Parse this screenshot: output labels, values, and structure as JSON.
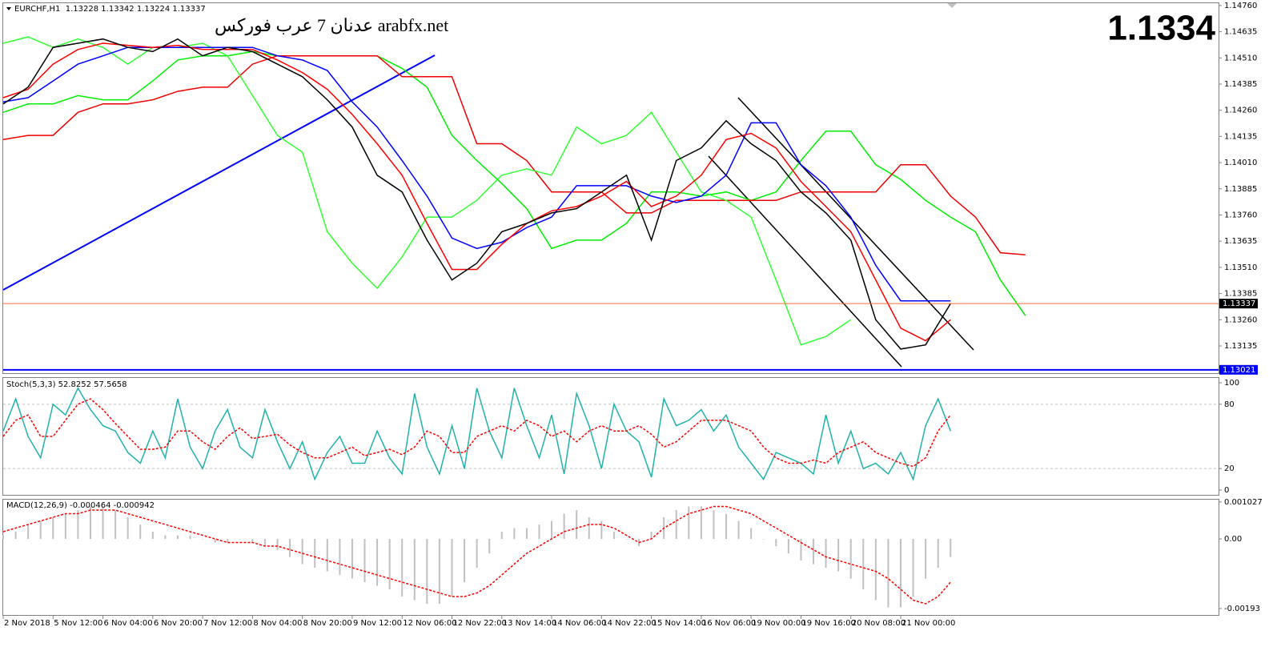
{
  "chart_data": [
    {
      "type": "line",
      "title": "EURCHF,H1  1.13228 1.13342 1.13224 1.13337",
      "watermark": "عدنان 7 عرب فوركس arabfx.net",
      "last_price_label": "1.1334",
      "x": [
        0,
        8,
        16,
        24,
        32,
        40,
        48,
        56,
        64,
        72,
        80,
        88,
        96,
        104,
        112,
        120,
        128,
        136,
        144,
        152,
        160,
        168,
        176,
        184,
        192,
        200,
        208,
        216,
        224,
        232,
        240,
        248,
        256,
        264,
        272,
        280,
        288,
        296,
        304,
        312,
        320,
        328
      ],
      "xlim": [
        0,
        390
      ],
      "ylim": [
        1.13005,
        1.14771
      ],
      "yticks": [
        {
          "value": 1.1476,
          "label": "1.14760"
        },
        1.14635,
        {
          "value": 1.1451,
          "label": "1.14510"
        },
        1.14385,
        {
          "value": 1.1426,
          "label": "1.14260"
        },
        1.14135,
        {
          "value": 1.1401,
          "label": "1.14010"
        },
        1.13885,
        {
          "value": 1.1376,
          "label": "1.13760"
        },
        1.13635,
        {
          "value": 1.1351,
          "label": "1.13510"
        },
        1.13385,
        {
          "value": 1.1326,
          "label": "1.13260"
        },
        1.13135
      ],
      "price_lines": [
        {
          "value": 1.13337,
          "label": "1.13337",
          "color": "#ff6a3a"
        },
        {
          "value": 1.13021,
          "label": "1.13021",
          "color": "#0000ff"
        }
      ],
      "series": [
        {
          "color": "#00ee00",
          "values": [
            1.1425,
            1.1429,
            1.1429,
            1.1433,
            1.1431,
            1.1431,
            1.144,
            1.145,
            1.1452,
            1.1452,
            1.1454,
            1.1452,
            1.1452,
            1.1452,
            1.1452,
            1.1452,
            1.1446,
            1.1437,
            1.1414,
            1.1402,
            1.1391,
            1.1379,
            1.136,
            1.1364,
            1.1364,
            1.1372,
            1.1387,
            1.1387,
            1.1385,
            1.1387,
            1.1383,
            1.1387,
            1.1402,
            1.1416,
            1.1416,
            1.14,
            1.1393,
            1.1383,
            1.1375,
            1.1368,
            1.1345,
            1.1328
          ]
        },
        {
          "color": "#ee0000",
          "values": [
            1.1412,
            1.1414,
            1.1414,
            1.1425,
            1.1429,
            1.1429,
            1.1431,
            1.1435,
            1.1437,
            1.1437,
            1.1448,
            1.1452,
            1.1452,
            1.1452,
            1.1452,
            1.1452,
            1.1442,
            1.1442,
            1.1442,
            1.141,
            1.141,
            1.1402,
            1.1387,
            1.1387,
            1.1387,
            1.1377,
            1.1377,
            1.1383,
            1.1383,
            1.1383,
            1.1383,
            1.1383,
            1.1387,
            1.1387,
            1.1387,
            1.1387,
            1.14,
            1.14,
            1.1385,
            1.1375,
            1.1358,
            1.1357
          ]
        },
        {
          "color": "#33ff33",
          "values": [
            1.1458,
            1.1461,
            1.1456,
            1.146,
            1.1456,
            1.1448,
            1.1456,
            1.1456,
            1.1458,
            1.1452,
            1.1433,
            1.1414,
            1.1406,
            1.1368,
            1.1353,
            1.1341,
            1.1356,
            1.1375,
            1.1375,
            1.1383,
            1.1395,
            1.1398,
            1.1395,
            1.1418,
            1.141,
            1.1414,
            1.1425,
            1.1406,
            1.1387,
            1.1383,
            1.1375,
            1.1345,
            1.1314,
            1.1318,
            1.1326,
            null,
            null,
            null,
            null,
            null,
            null,
            null
          ]
        },
        {
          "color": "#0000ff",
          "values": [
            1.143,
            1.1432,
            1.144,
            1.1448,
            1.1452,
            1.1456,
            1.1456,
            1.1456,
            1.1456,
            1.1456,
            1.1456,
            1.1452,
            1.145,
            1.1445,
            1.143,
            1.1418,
            1.1402,
            1.1385,
            1.1365,
            1.136,
            1.1363,
            1.137,
            1.1375,
            1.139,
            1.139,
            1.139,
            1.1385,
            1.1382,
            1.1385,
            1.1395,
            1.142,
            1.142,
            1.14,
            1.139,
            1.1375,
            1.1352,
            1.1335,
            1.1335,
            1.1335,
            null,
            null,
            null
          ]
        },
        {
          "color": "#ff0000",
          "values": [
            1.1432,
            1.1436,
            1.1448,
            1.1455,
            1.1458,
            1.1457,
            1.1456,
            1.1457,
            1.1455,
            1.1455,
            1.1455,
            1.145,
            1.1444,
            1.1436,
            1.1424,
            1.141,
            1.1395,
            1.1372,
            1.135,
            1.135,
            1.1362,
            1.1372,
            1.1378,
            1.138,
            1.1385,
            1.1392,
            1.138,
            1.1385,
            1.1395,
            1.1412,
            1.1415,
            1.1408,
            1.1392,
            1.138,
            1.1368,
            1.1345,
            1.1322,
            1.1316,
            1.1326,
            null,
            null,
            null
          ]
        },
        {
          "color": "#000000",
          "values": [
            1.1429,
            1.1437,
            1.1456,
            1.1458,
            1.146,
            1.1456,
            1.1454,
            1.146,
            1.1452,
            1.1456,
            1.1454,
            1.1448,
            1.1442,
            1.1431,
            1.1418,
            1.1395,
            1.1387,
            1.1364,
            1.1345,
            1.1353,
            1.1368,
            1.1372,
            1.1377,
            1.1379,
            1.1387,
            1.1395,
            1.1364,
            1.1402,
            1.1408,
            1.1421,
            1.141,
            1.1402,
            1.1387,
            1.1377,
            1.1364,
            1.1326,
            1.1312,
            1.1314,
            1.13337,
            null,
            null,
            null
          ]
        }
      ]
    },
    {
      "type": "line",
      "title": "Stoch(5,3,3) 52.8252 57.5658",
      "x": [
        0,
        4,
        8,
        12,
        16,
        20,
        24,
        28,
        32,
        36,
        40,
        44,
        48,
        52,
        56,
        60,
        64,
        68,
        72,
        76,
        80,
        84,
        88,
        92,
        96,
        100,
        104,
        108,
        112,
        116,
        120,
        124,
        128,
        132,
        136,
        140,
        144,
        148,
        152,
        156,
        160,
        164,
        168,
        172,
        176,
        180,
        184,
        188,
        192,
        196,
        200,
        204,
        208,
        212,
        216,
        220,
        224,
        228,
        232,
        236,
        240,
        244,
        248,
        252,
        256,
        260,
        264,
        268,
        272,
        276,
        280,
        284,
        288,
        292,
        296,
        300,
        304
      ],
      "xlim": [
        0,
        390
      ],
      "ylim": [
        -4.5,
        104.5
      ],
      "yticks": [
        0,
        20,
        80,
        100
      ],
      "levels": [
        20,
        80
      ],
      "series": [
        {
          "color": "#20b2aa",
          "values": [
            55,
            85,
            50,
            30,
            80,
            70,
            95,
            75,
            60,
            55,
            35,
            25,
            55,
            30,
            85,
            40,
            20,
            55,
            75,
            40,
            30,
            75,
            45,
            20,
            45,
            10,
            35,
            50,
            25,
            25,
            55,
            30,
            15,
            90,
            40,
            15,
            60,
            20,
            95,
            55,
            30,
            95,
            60,
            30,
            70,
            15,
            90,
            60,
            20,
            80,
            55,
            45,
            12,
            85,
            60,
            65,
            75,
            55,
            70,
            40,
            25,
            10,
            35,
            30,
            25,
            15,
            70,
            25,
            55,
            20,
            25,
            15,
            35,
            10,
            60,
            85,
            55
          ]
        },
        {
          "color": "#ff0000",
          "style": "dashed",
          "values": [
            50,
            65,
            70,
            50,
            50,
            65,
            80,
            85,
            75,
            62,
            50,
            38,
            38,
            40,
            55,
            55,
            45,
            38,
            50,
            58,
            48,
            50,
            52,
            42,
            35,
            30,
            30,
            35,
            40,
            32,
            35,
            38,
            33,
            40,
            55,
            50,
            35,
            35,
            50,
            55,
            60,
            55,
            65,
            60,
            50,
            55,
            45,
            55,
            60,
            55,
            55,
            60,
            52,
            40,
            45,
            55,
            65,
            65,
            65,
            60,
            55,
            40,
            30,
            25,
            25,
            28,
            25,
            35,
            40,
            45,
            35,
            30,
            25,
            22,
            30,
            55,
            70
          ]
        }
      ]
    },
    {
      "type": "bar",
      "title": "MACD(12,26,9) -0.000464 -0.000942",
      "x": [
        0,
        4,
        8,
        12,
        16,
        20,
        24,
        28,
        32,
        36,
        40,
        44,
        48,
        52,
        56,
        60,
        64,
        68,
        72,
        76,
        80,
        84,
        88,
        92,
        96,
        100,
        104,
        108,
        112,
        116,
        120,
        124,
        128,
        132,
        136,
        140,
        144,
        148,
        152,
        156,
        160,
        164,
        168,
        172,
        176,
        180,
        184,
        188,
        192,
        196,
        200,
        204,
        208,
        212,
        216,
        220,
        224,
        228,
        232,
        236,
        240,
        244,
        248,
        252,
        256,
        260,
        264,
        268,
        272,
        276,
        280,
        284,
        288,
        292,
        296,
        300,
        304
      ],
      "xlim": [
        0,
        390
      ],
      "ylim": [
        -0.00211,
        0.00109
      ],
      "yticks": [
        0.001027,
        {
          "value": 0,
          "label": "0.00"
        },
        -0.00193
      ],
      "xticks": [
        {
          "value": 0,
          "label": "2 Nov 2018"
        },
        {
          "value": 16,
          "label": "5 Nov 12:00"
        },
        {
          "value": 32,
          "label": "6 Nov 04:00"
        },
        {
          "value": 48,
          "label": "6 Nov 20:00"
        },
        {
          "value": 64,
          "label": "7 Nov 12:00"
        },
        {
          "value": 80,
          "label": "8 Nov 04:00"
        },
        {
          "value": 96,
          "label": "8 Nov 20:00"
        },
        {
          "value": 112,
          "label": "9 Nov 12:00"
        },
        {
          "value": 128,
          "label": "12 Nov 06:00"
        },
        {
          "value": 144,
          "label": "12 Nov 22:00"
        },
        {
          "value": 160,
          "label": "13 Nov 14:00"
        },
        {
          "value": 176,
          "label": "14 Nov 06:00"
        },
        {
          "value": 192,
          "label": "14 Nov 22:00"
        },
        {
          "value": 208,
          "label": "15 Nov 14:00"
        },
        {
          "value": 224,
          "label": "16 Nov 06:00"
        },
        {
          "value": 240,
          "label": "19 Nov 00:00"
        },
        {
          "value": 256,
          "label": "19 Nov 16:00"
        },
        {
          "value": 272,
          "label": "20 Nov 08:00"
        },
        {
          "value": 288,
          "label": "21 Nov 00:00"
        }
      ],
      "series": [
        {
          "type": "bar",
          "color": "#c0c0c0",
          "values": [
            0.0001,
            0.0002,
            0.0004,
            0.0005,
            0.0006,
            0.0007,
            0.0008,
            0.0009,
            0.0009,
            0.0008,
            0.0006,
            0.0004,
            0.0002,
            0.0001,
            0.0001,
            0.0001,
            0,
            -0.0001,
            -0.0001,
            0,
            -0.0001,
            -0.0002,
            -0.0003,
            -0.0005,
            -0.0007,
            -0.0008,
            -0.0009,
            -0.001,
            -0.0011,
            -0.0012,
            -0.0013,
            -0.0014,
            -0.0016,
            -0.0017,
            -0.0018,
            -0.0018,
            -0.0016,
            -0.0012,
            -0.0008,
            -0.0004,
            0.0002,
            0.0003,
            0.0003,
            0.0004,
            0.0005,
            0.0007,
            0.0008,
            0.0006,
            0.0005,
            0.0002,
            0,
            -0.0002,
            0.0002,
            0.0006,
            0.0008,
            0.0009,
            0.0009,
            0.0008,
            0.0007,
            0.0005,
            0.0003,
            0,
            -0.0002,
            -0.0004,
            -0.0006,
            -0.0007,
            -0.0008,
            -0.0009,
            -0.0011,
            -0.0014,
            -0.0017,
            -0.0019,
            -0.0019,
            -0.0016,
            -0.0011,
            -0.0008,
            -0.0005
          ]
        },
        {
          "type": "line",
          "color": "#ff0000",
          "style": "dashed",
          "values": [
            0.0002,
            0.0003,
            0.0004,
            0.0005,
            0.0006,
            0.0007,
            0.0007,
            0.0008,
            0.0008,
            0.0008,
            0.0007,
            0.0006,
            0.0005,
            0.0004,
            0.0003,
            0.0002,
            0.0001,
            0,
            -0.0001,
            -0.0001,
            -0.0001,
            -0.0002,
            -0.0002,
            -0.0003,
            -0.0004,
            -0.0005,
            -0.0006,
            -0.0007,
            -0.0008,
            -0.0009,
            -0.001,
            -0.0011,
            -0.0012,
            -0.0013,
            -0.0014,
            -0.0015,
            -0.0016,
            -0.0016,
            -0.0015,
            -0.0013,
            -0.001,
            -0.0007,
            -0.0004,
            -0.0002,
            0,
            0.0002,
            0.0003,
            0.0004,
            0.0004,
            0.0003,
            0.0001,
            -0.0001,
            0,
            0.0003,
            0.0005,
            0.0007,
            0.0008,
            0.0009,
            0.0009,
            0.0008,
            0.0007,
            0.0005,
            0.0003,
            0.0001,
            -0.0001,
            -0.0003,
            -0.0005,
            -0.0006,
            -0.0007,
            -0.0008,
            -0.0009,
            -0.0011,
            -0.0014,
            -0.0017,
            -0.0018,
            -0.0016,
            -0.0012
          ]
        }
      ]
    }
  ]
}
